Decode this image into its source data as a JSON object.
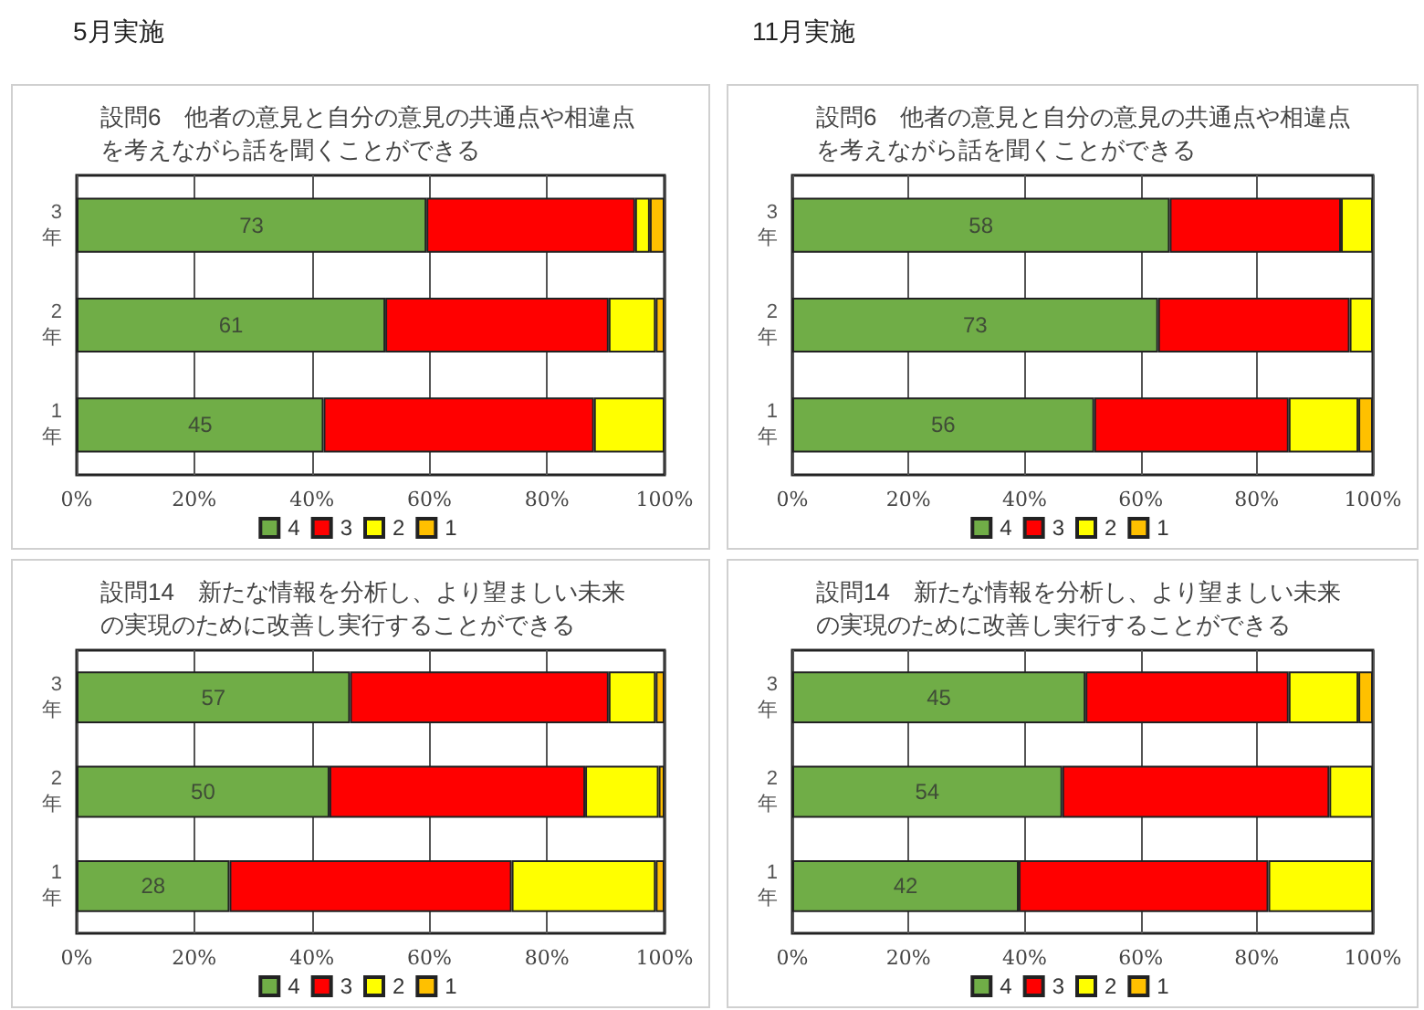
{
  "chart_data": [
    {
      "type": "bar",
      "title": "設問6　他者の意見と自分の意見の共通点や相違点を考えながら話を聞くことができる",
      "annotations": [
        "5月実施",
        "73",
        "61",
        "45"
      ],
      "categories": [
        "3年",
        "2年",
        "1年"
      ],
      "orientation": "horizontal",
      "stacked": true,
      "grid": "x",
      "legend": "bottom",
      "xlim": [
        0,
        100
      ],
      "xticks": [
        {
          "value": 0,
          "label": "0%"
        },
        {
          "value": 20,
          "label": "20%"
        },
        {
          "value": 40,
          "label": "40%"
        },
        {
          "value": 60,
          "label": "60%"
        },
        {
          "value": 80,
          "label": "80%"
        },
        {
          "value": 100,
          "label": "100%"
        }
      ],
      "series": [
        {
          "name": "4",
          "color": "#70ad47",
          "values": [
            59.5,
            52.5,
            42
          ]
        },
        {
          "name": "3",
          "color": "#ff0000",
          "values": [
            35.5,
            38,
            46
          ]
        },
        {
          "name": "2",
          "color": "#ffff00",
          "values": [
            2.5,
            8,
            12
          ]
        },
        {
          "name": "1",
          "color": "#ffc000",
          "values": [
            2.5,
            1.5,
            0
          ]
        }
      ]
    },
    {
      "type": "bar",
      "title": "設問6　他者の意見と自分の意見の共通点や相違点を考えながら話を聞くことができる",
      "annotations": [
        "11月実施",
        "58",
        "73",
        "56"
      ],
      "categories": [
        "3年",
        "2年",
        "1年"
      ],
      "orientation": "horizontal",
      "stacked": true,
      "grid": "x",
      "legend": "bottom",
      "xlim": [
        0,
        100
      ],
      "xticks": [
        {
          "value": 0,
          "label": "0%"
        },
        {
          "value": 20,
          "label": "20%"
        },
        {
          "value": 40,
          "label": "40%"
        },
        {
          "value": 60,
          "label": "60%"
        },
        {
          "value": 80,
          "label": "80%"
        },
        {
          "value": 100,
          "label": "100%"
        }
      ],
      "series": [
        {
          "name": "4",
          "color": "#70ad47",
          "values": [
            65,
            63,
            52
          ]
        },
        {
          "name": "3",
          "color": "#ff0000",
          "values": [
            29.5,
            33,
            33.5
          ]
        },
        {
          "name": "2",
          "color": "#ffff00",
          "values": [
            5.5,
            4,
            12
          ]
        },
        {
          "name": "1",
          "color": "#ffc000",
          "values": [
            0,
            0,
            2.5
          ]
        }
      ]
    },
    {
      "type": "bar",
      "title": "設問14　新たな情報を分析し、より望ましい未来の実現のために改善し実行することができる",
      "annotations": [
        "57",
        "50",
        "28"
      ],
      "categories": [
        "3年",
        "2年",
        "1年"
      ],
      "orientation": "horizontal",
      "stacked": true,
      "grid": "x",
      "legend": "bottom",
      "xlim": [
        0,
        100
      ],
      "xticks": [
        {
          "value": 0,
          "label": "0%"
        },
        {
          "value": 20,
          "label": "20%"
        },
        {
          "value": 40,
          "label": "40%"
        },
        {
          "value": 60,
          "label": "60%"
        },
        {
          "value": 80,
          "label": "80%"
        },
        {
          "value": 100,
          "label": "100%"
        }
      ],
      "series": [
        {
          "name": "4",
          "color": "#70ad47",
          "values": [
            46.5,
            43,
            26
          ]
        },
        {
          "name": "3",
          "color": "#ff0000",
          "values": [
            44,
            43.5,
            48
          ]
        },
        {
          "name": "2",
          "color": "#ffff00",
          "values": [
            8,
            12.5,
            24.5
          ]
        },
        {
          "name": "1",
          "color": "#ffc000",
          "values": [
            1.5,
            1,
            1.5
          ]
        }
      ]
    },
    {
      "type": "bar",
      "title": "設問14　新たな情報を分析し、より望ましい未来の実現のために改善し実行することができる",
      "annotations": [
        "45",
        "54",
        "42"
      ],
      "categories": [
        "3年",
        "2年",
        "1年"
      ],
      "orientation": "horizontal",
      "stacked": true,
      "grid": "x",
      "legend": "bottom",
      "xlim": [
        0,
        100
      ],
      "xticks": [
        {
          "value": 0,
          "label": "0%"
        },
        {
          "value": 20,
          "label": "20%"
        },
        {
          "value": 40,
          "label": "40%"
        },
        {
          "value": 60,
          "label": "60%"
        },
        {
          "value": 80,
          "label": "80%"
        },
        {
          "value": 100,
          "label": "100%"
        }
      ],
      "series": [
        {
          "name": "4",
          "color": "#70ad47",
          "values": [
            50.5,
            46.5,
            39
          ]
        },
        {
          "name": "3",
          "color": "#ff0000",
          "values": [
            35,
            46,
            43
          ]
        },
        {
          "name": "2",
          "color": "#ffff00",
          "values": [
            12,
            7.5,
            18
          ]
        },
        {
          "name": "1",
          "color": "#ffc000",
          "values": [
            2.5,
            0,
            0
          ]
        }
      ]
    }
  ]
}
